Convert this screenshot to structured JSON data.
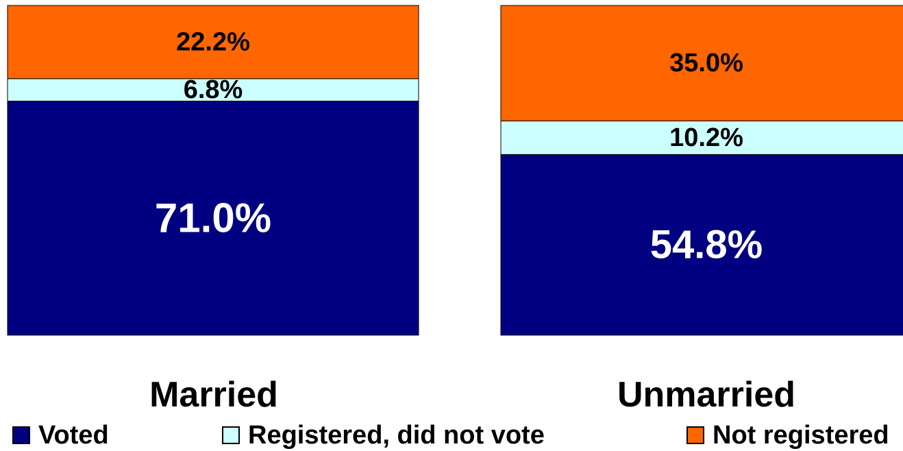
{
  "chart_data": {
    "type": "bar",
    "stacked": true,
    "normalized": true,
    "categories": [
      "Married",
      "Unmarried"
    ],
    "series": [
      {
        "name": "Voted",
        "values": [
          71.0,
          54.8
        ],
        "labels": [
          "71.0%",
          "54.8%"
        ],
        "color": "#000080",
        "label_color": "#ffffff"
      },
      {
        "name": "Registered, did not vote",
        "values": [
          6.8,
          10.2
        ],
        "labels": [
          "6.8%",
          "10.2%"
        ],
        "color": "#ccffff",
        "label_color": "#000000"
      },
      {
        "name": "Not registered",
        "values": [
          22.2,
          35.0
        ],
        "labels": [
          "22.2%",
          "35.0%"
        ],
        "color": "#ff6600",
        "label_color": "#000000"
      }
    ],
    "ylim": [
      0,
      100
    ],
    "grid": false,
    "legend_position": "bottom"
  }
}
